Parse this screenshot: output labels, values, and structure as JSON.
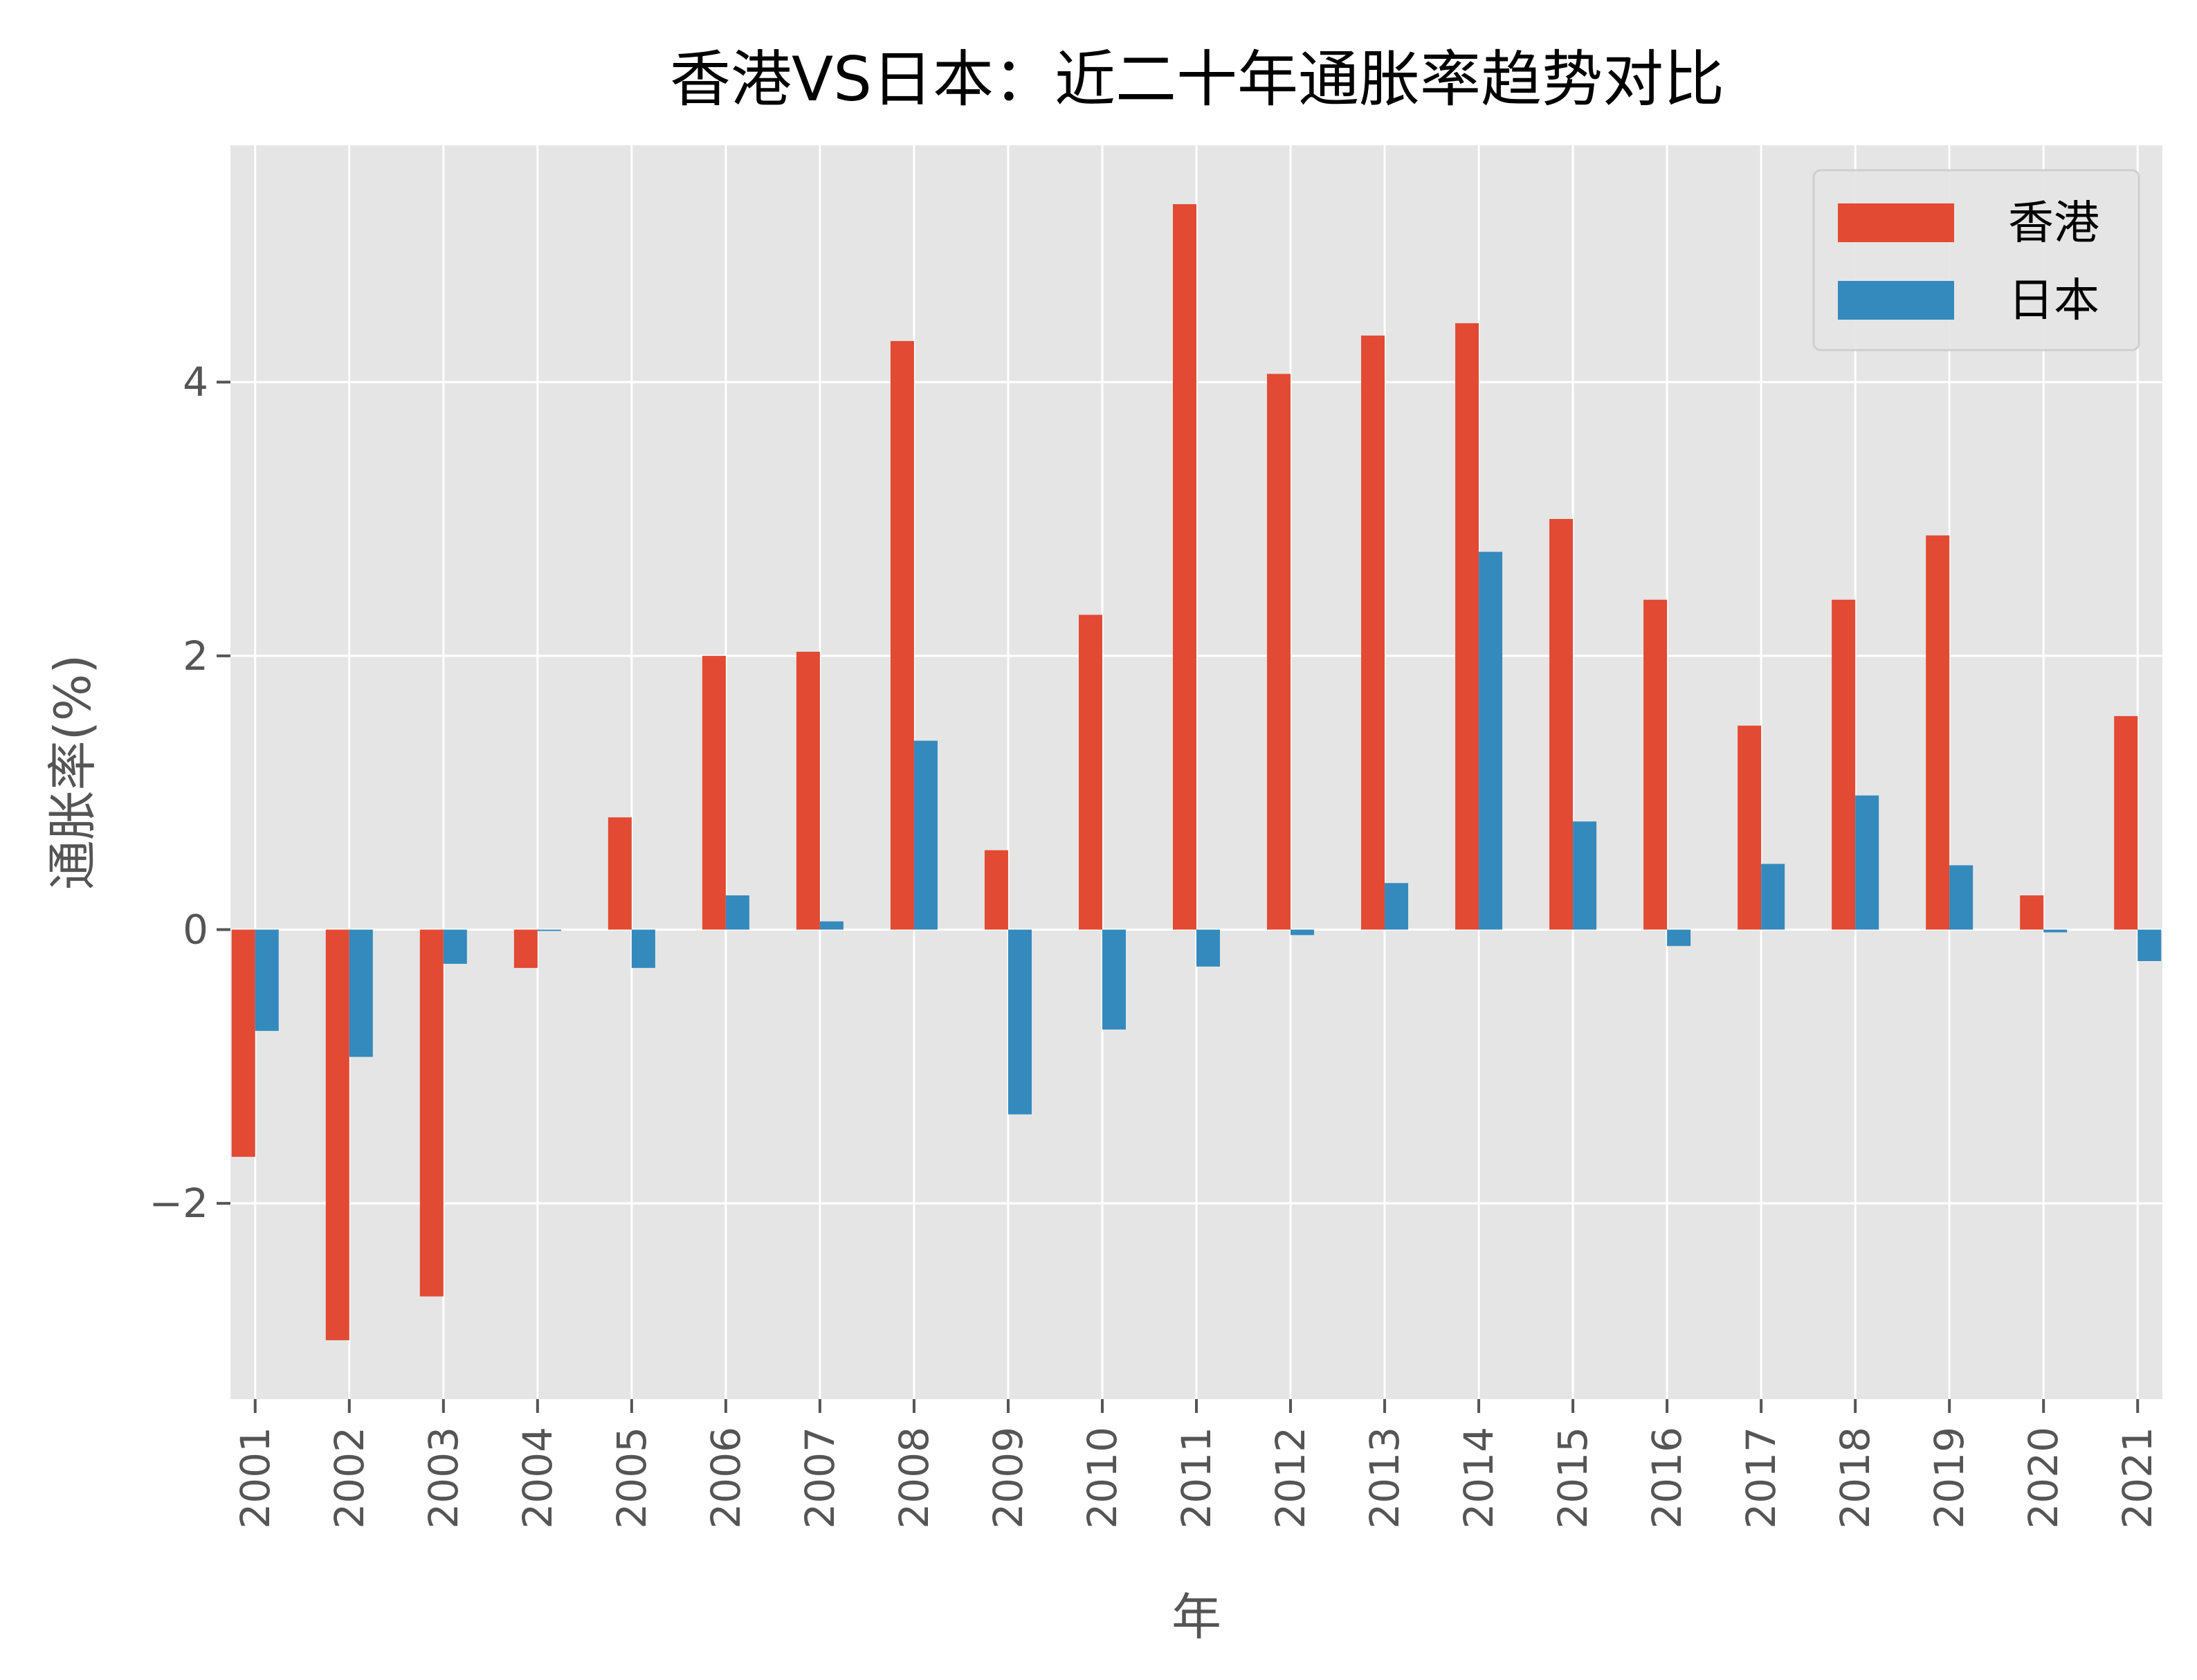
{
  "chart_data": {
    "type": "bar",
    "title": "香港VS日本：近二十年通胀率趋势对比",
    "xlabel": "年",
    "ylabel": "通胀率(%)",
    "categories": [
      "2001",
      "2002",
      "2003",
      "2004",
      "2005",
      "2006",
      "2007",
      "2008",
      "2009",
      "2010",
      "2011",
      "2012",
      "2013",
      "2014",
      "2015",
      "2016",
      "2017",
      "2018",
      "2019",
      "2020",
      "2021"
    ],
    "series": [
      {
        "name": "香港",
        "color": "#E24A33",
        "values": [
          -1.66,
          -3.0,
          -2.68,
          -0.28,
          0.82,
          2.0,
          2.03,
          4.3,
          0.58,
          2.3,
          5.3,
          4.06,
          4.34,
          4.43,
          3.0,
          2.41,
          1.49,
          2.41,
          2.88,
          0.25,
          1.56
        ]
      },
      {
        "name": "日本",
        "color": "#348ABD",
        "values": [
          -0.74,
          -0.93,
          -0.25,
          -0.01,
          -0.28,
          0.25,
          0.06,
          1.38,
          -1.35,
          -0.73,
          -0.27,
          -0.04,
          0.34,
          2.76,
          0.79,
          -0.12,
          0.48,
          0.98,
          0.47,
          -0.02,
          -0.23
        ]
      }
    ],
    "ylim": [
      -3.43,
      5.73
    ],
    "yticks": [
      "−2",
      "0",
      "2",
      "4"
    ],
    "ytick_values": [
      -2,
      0,
      2,
      4
    ],
    "grid": true,
    "legend_position": "top-right",
    "style": {
      "plot_background": "#E5E5E5",
      "grid_color": "#FFFFFF"
    }
  }
}
